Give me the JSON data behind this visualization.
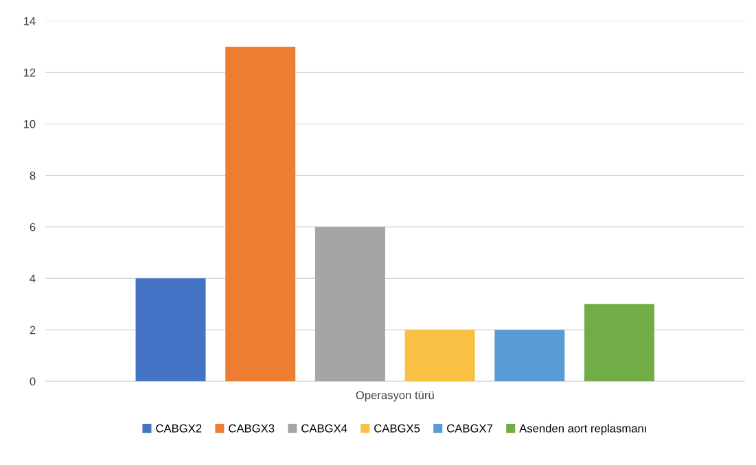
{
  "chart_data": {
    "type": "bar",
    "categories": [
      "Operasyon türü"
    ],
    "series": [
      {
        "name": "CABGX2",
        "color": "#4472c4",
        "values": [
          4
        ]
      },
      {
        "name": "CABGX3",
        "color": "#ed7d31",
        "values": [
          13
        ]
      },
      {
        "name": "CABGX4",
        "color": "#a5a5a5",
        "values": [
          6
        ]
      },
      {
        "name": "CABGX5",
        "color": "#f9c044",
        "values": [
          2
        ]
      },
      {
        "name": "CABGX7",
        "color": "#5b9bd5",
        "values": [
          2
        ]
      },
      {
        "name": "Asenden aort replasmanı",
        "color": "#70ad47",
        "values": [
          3
        ]
      }
    ],
    "ylim": [
      0,
      14
    ],
    "yticks": [
      0,
      2,
      4,
      6,
      8,
      10,
      12,
      14
    ],
    "grid": "y",
    "legend": "bottom"
  }
}
